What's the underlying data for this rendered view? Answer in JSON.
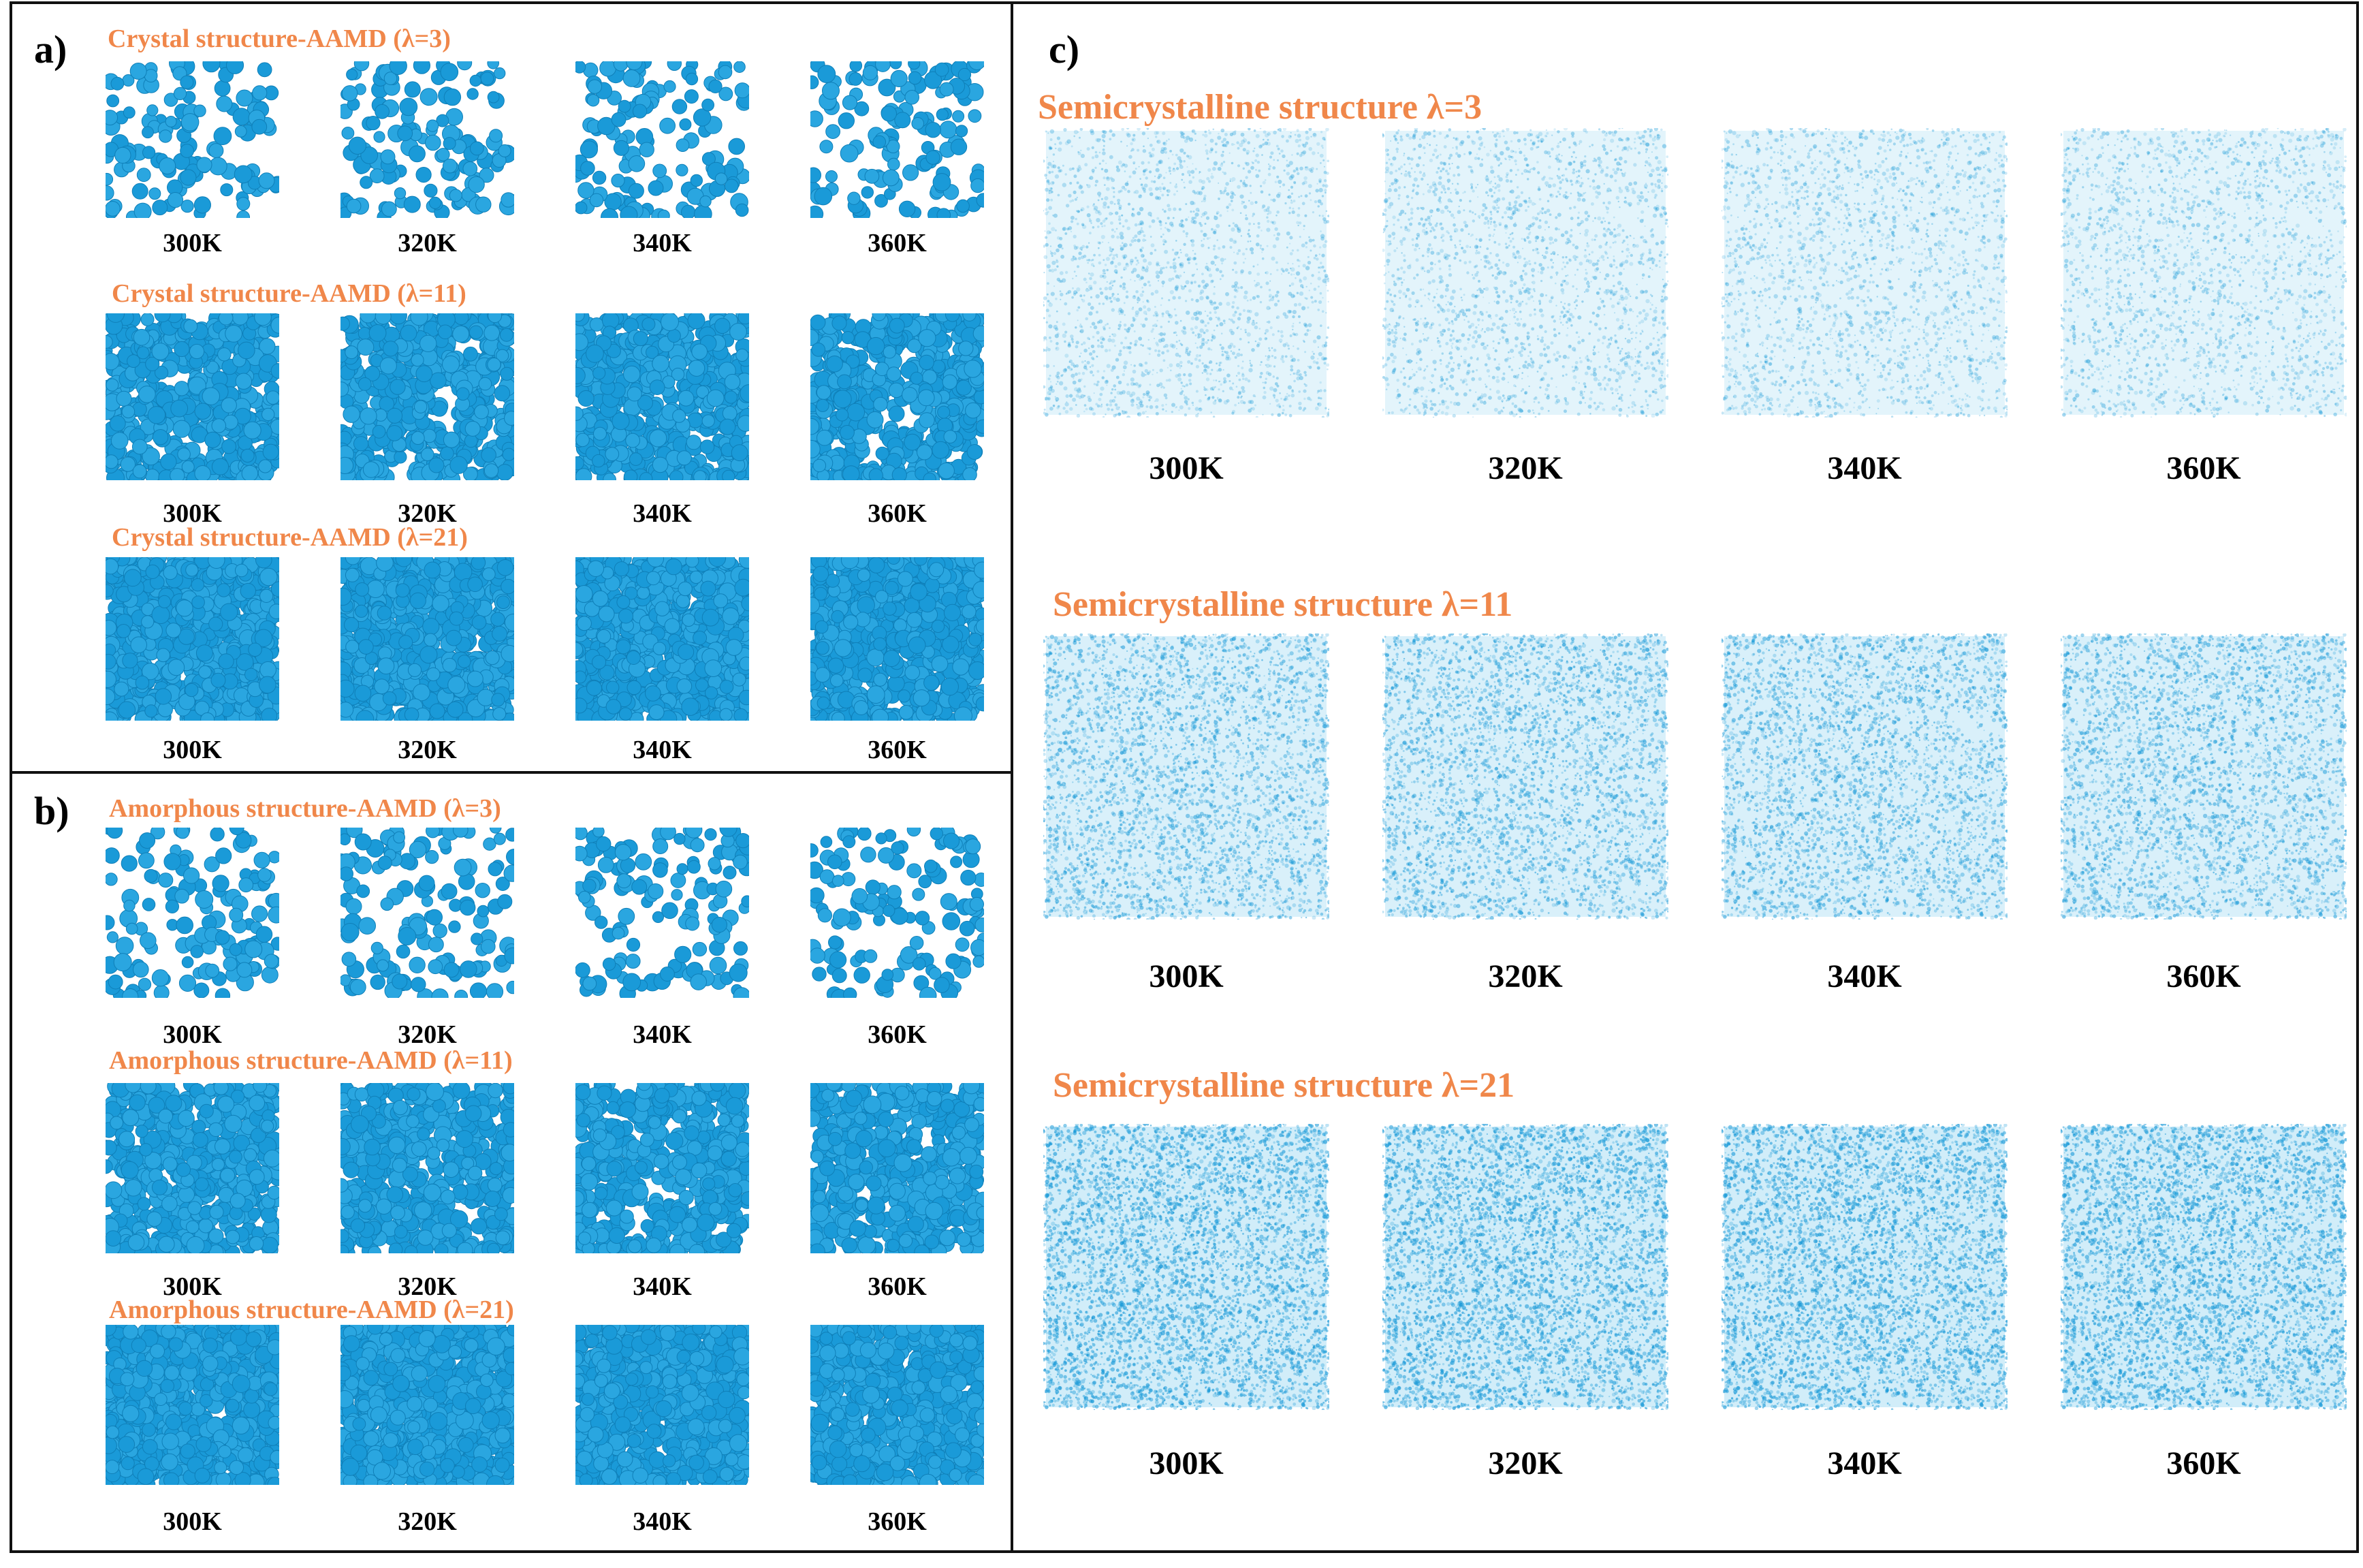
{
  "colors": {
    "title": "#f0874a",
    "molecule": "#1a9ad8",
    "molecule_light": "#5bc0e8",
    "border": "#111111"
  },
  "panels": {
    "a": {
      "label": "a)",
      "rows": [
        {
          "title": "Crystal structure-AAMD (λ=3)",
          "density": "sparse",
          "temps": [
            "300K",
            "320K",
            "340K",
            "360K"
          ]
        },
        {
          "title": "Crystal structure-AAMD (λ=11)",
          "density": "dense",
          "temps": [
            "300K",
            "320K",
            "340K",
            "360K"
          ]
        },
        {
          "title": "Crystal structure-AAMD (λ=21)",
          "density": "full",
          "temps": [
            "300K",
            "320K",
            "340K",
            "360K"
          ]
        }
      ]
    },
    "b": {
      "label": "b)",
      "rows": [
        {
          "title": "Amorphous structure-AAMD (λ=3)",
          "density": "sparse",
          "temps": [
            "300K",
            "320K",
            "340K",
            "360K"
          ]
        },
        {
          "title": "Amorphous structure-AAMD (λ=11)",
          "density": "dense",
          "temps": [
            "300K",
            "320K",
            "340K",
            "360K"
          ]
        },
        {
          "title": "Amorphous structure-AAMD (λ=21)",
          "density": "full",
          "temps": [
            "300K",
            "320K",
            "340K",
            "360K"
          ]
        }
      ]
    },
    "c": {
      "label": "c)",
      "rows": [
        {
          "title": "Semicrystalline  structure λ=3",
          "density": "light",
          "temps": [
            "300K",
            "320K",
            "340K",
            "360K"
          ]
        },
        {
          "title": "Semicrystalline  structure λ=11",
          "density": "medium",
          "temps": [
            "300K",
            "320K",
            "340K",
            "360K"
          ]
        },
        {
          "title": "Semicrystalline  structure λ=21",
          "density": "heavy",
          "temps": [
            "300K",
            "320K",
            "340K",
            "360K"
          ]
        }
      ]
    }
  }
}
